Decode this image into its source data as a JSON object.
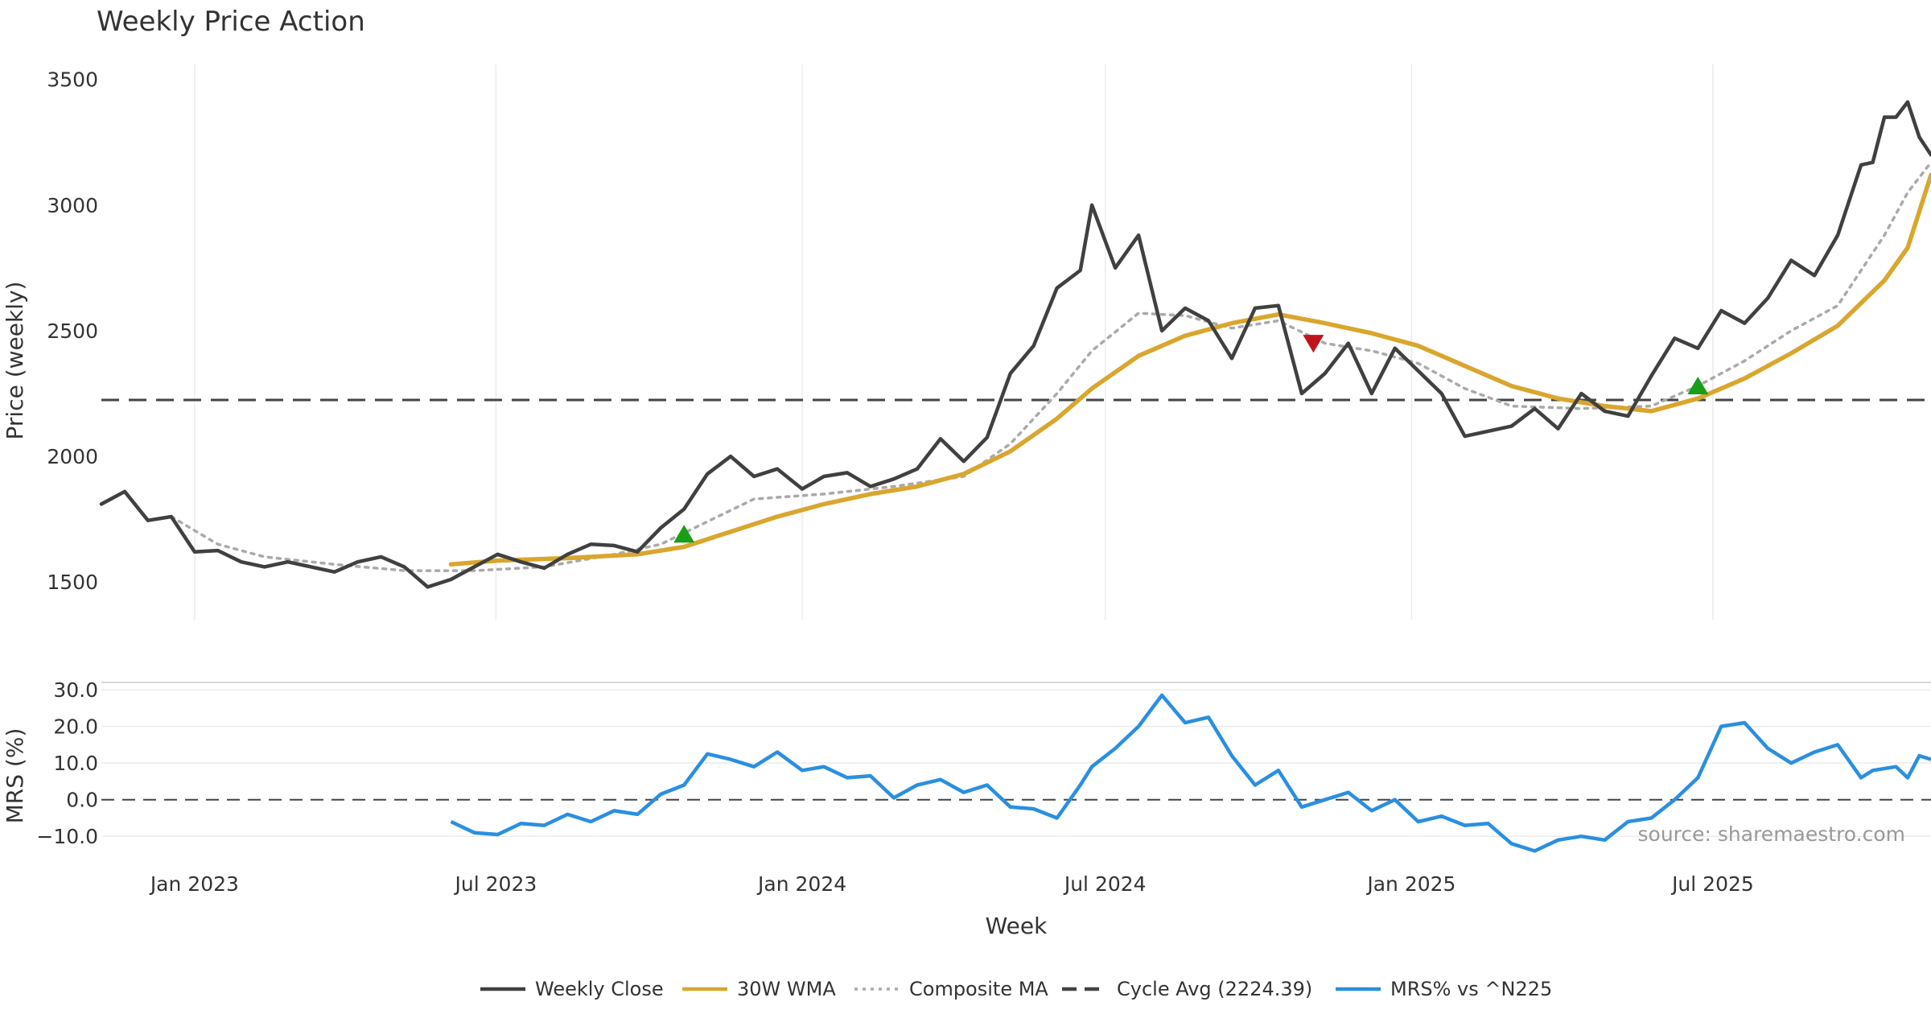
{
  "chart_data": {
    "type": "line",
    "title": "Weekly Price Action",
    "source": "source: sharemaestro.com",
    "xlabel": "Week",
    "x_ticks": [
      "Jan 2023",
      "Jul 2023",
      "Jan 2024",
      "Jul 2024",
      "Jan 2025",
      "Jul 2025"
    ],
    "x_tick_dates": [
      "2023-01-01",
      "2023-07-01",
      "2024-01-01",
      "2024-07-01",
      "2025-01-01",
      "2025-07-01"
    ],
    "x_range": [
      "2022-11-06",
      "2025-11-09"
    ],
    "grid": true,
    "legend_position": "bottom-center",
    "price_panel": {
      "ylabel": "Price (weekly)",
      "ylim": [
        1350,
        3560
      ],
      "y_ticks": [
        "1500",
        "2000",
        "2500",
        "3000",
        "3500"
      ],
      "y_tick_values": [
        1500,
        2000,
        2500,
        3000,
        3500
      ],
      "series": [
        {
          "name": "Weekly Close",
          "color": "#404040",
          "style": "solid",
          "points": [
            [
              "2022-11-06",
              1810
            ],
            [
              "2022-11-20",
              1860
            ],
            [
              "2022-12-04",
              1745
            ],
            [
              "2022-12-18",
              1760
            ],
            [
              "2023-01-01",
              1620
            ],
            [
              "2023-01-15",
              1625
            ],
            [
              "2023-01-29",
              1580
            ],
            [
              "2023-02-12",
              1560
            ],
            [
              "2023-02-26",
              1580
            ],
            [
              "2023-03-12",
              1560
            ],
            [
              "2023-03-26",
              1540
            ],
            [
              "2023-04-09",
              1580
            ],
            [
              "2023-04-23",
              1600
            ],
            [
              "2023-05-07",
              1560
            ],
            [
              "2023-05-21",
              1480
            ],
            [
              "2023-06-04",
              1510
            ],
            [
              "2023-06-18",
              1560
            ],
            [
              "2023-07-02",
              1610
            ],
            [
              "2023-07-16",
              1580
            ],
            [
              "2023-07-30",
              1555
            ],
            [
              "2023-08-13",
              1610
            ],
            [
              "2023-08-27",
              1650
            ],
            [
              "2023-09-10",
              1645
            ],
            [
              "2023-09-24",
              1620
            ],
            [
              "2023-10-08",
              1715
            ],
            [
              "2023-10-22",
              1790
            ],
            [
              "2023-11-05",
              1930
            ],
            [
              "2023-11-19",
              2000
            ],
            [
              "2023-12-03",
              1920
            ],
            [
              "2023-12-17",
              1950
            ],
            [
              "2024-01-01",
              1870
            ],
            [
              "2024-01-14",
              1920
            ],
            [
              "2024-01-28",
              1935
            ],
            [
              "2024-02-11",
              1880
            ],
            [
              "2024-02-25",
              1910
            ],
            [
              "2024-03-10",
              1950
            ],
            [
              "2024-03-24",
              2070
            ],
            [
              "2024-04-07",
              1980
            ],
            [
              "2024-04-21",
              2075
            ],
            [
              "2024-05-05",
              2330
            ],
            [
              "2024-05-19",
              2440
            ],
            [
              "2024-06-02",
              2670
            ],
            [
              "2024-06-16",
              2740
            ],
            [
              "2024-06-23",
              3000
            ],
            [
              "2024-07-07",
              2750
            ],
            [
              "2024-07-21",
              2880
            ],
            [
              "2024-08-04",
              2500
            ],
            [
              "2024-08-18",
              2590
            ],
            [
              "2024-09-01",
              2540
            ],
            [
              "2024-09-15",
              2390
            ],
            [
              "2024-09-29",
              2590
            ],
            [
              "2024-10-13",
              2600
            ],
            [
              "2024-10-27",
              2250
            ],
            [
              "2024-11-10",
              2330
            ],
            [
              "2024-11-24",
              2450
            ],
            [
              "2024-12-08",
              2250
            ],
            [
              "2024-12-22",
              2430
            ],
            [
              "2025-01-05",
              2340
            ],
            [
              "2025-01-19",
              2250
            ],
            [
              "2025-02-02",
              2080
            ],
            [
              "2025-02-16",
              2100
            ],
            [
              "2025-03-02",
              2120
            ],
            [
              "2025-03-16",
              2190
            ],
            [
              "2025-03-30",
              2110
            ],
            [
              "2025-04-13",
              2250
            ],
            [
              "2025-04-27",
              2180
            ],
            [
              "2025-05-11",
              2160
            ],
            [
              "2025-05-25",
              2320
            ],
            [
              "2025-06-08",
              2470
            ],
            [
              "2025-06-22",
              2430
            ],
            [
              "2025-07-06",
              2580
            ],
            [
              "2025-07-20",
              2530
            ],
            [
              "2025-08-03",
              2630
            ],
            [
              "2025-08-17",
              2780
            ],
            [
              "2025-08-31",
              2720
            ],
            [
              "2025-09-14",
              2880
            ],
            [
              "2025-09-28",
              3160
            ],
            [
              "2025-10-05",
              3170
            ],
            [
              "2025-10-12",
              3350
            ],
            [
              "2025-10-19",
              3350
            ],
            [
              "2025-10-26",
              3410
            ],
            [
              "2025-11-02",
              3270
            ],
            [
              "2025-11-09",
              3200
            ]
          ]
        },
        {
          "name": "30W WMA",
          "color": "#D9A62E",
          "style": "solid",
          "points": [
            [
              "2023-06-04",
              1570
            ],
            [
              "2023-07-02",
              1585
            ],
            [
              "2023-08-13",
              1595
            ],
            [
              "2023-09-24",
              1610
            ],
            [
              "2023-10-22",
              1640
            ],
            [
              "2023-11-19",
              1700
            ],
            [
              "2023-12-17",
              1760
            ],
            [
              "2024-01-14",
              1810
            ],
            [
              "2024-02-11",
              1850
            ],
            [
              "2024-03-10",
              1880
            ],
            [
              "2024-04-07",
              1930
            ],
            [
              "2024-05-05",
              2020
            ],
            [
              "2024-06-02",
              2150
            ],
            [
              "2024-06-23",
              2270
            ],
            [
              "2024-07-21",
              2400
            ],
            [
              "2024-08-18",
              2480
            ],
            [
              "2024-09-15",
              2530
            ],
            [
              "2024-10-13",
              2565
            ],
            [
              "2024-11-10",
              2530
            ],
            [
              "2024-12-08",
              2490
            ],
            [
              "2025-01-05",
              2440
            ],
            [
              "2025-02-02",
              2360
            ],
            [
              "2025-03-02",
              2280
            ],
            [
              "2025-03-30",
              2230
            ],
            [
              "2025-04-27",
              2200
            ],
            [
              "2025-05-25",
              2180
            ],
            [
              "2025-06-22",
              2230
            ],
            [
              "2025-07-20",
              2310
            ],
            [
              "2025-08-17",
              2410
            ],
            [
              "2025-09-14",
              2520
            ],
            [
              "2025-10-12",
              2700
            ],
            [
              "2025-10-26",
              2830
            ],
            [
              "2025-11-09",
              3120
            ]
          ]
        },
        {
          "name": "Composite MA",
          "color": "#AAAAAA",
          "style": "dotted",
          "points": [
            [
              "2022-12-18",
              1760
            ],
            [
              "2023-01-15",
              1650
            ],
            [
              "2023-02-12",
              1600
            ],
            [
              "2023-03-26",
              1570
            ],
            [
              "2023-05-07",
              1545
            ],
            [
              "2023-06-18",
              1545
            ],
            [
              "2023-07-30",
              1560
            ],
            [
              "2023-09-10",
              1610
            ],
            [
              "2023-10-08",
              1650
            ],
            [
              "2023-11-05",
              1740
            ],
            [
              "2023-12-03",
              1830
            ],
            [
              "2024-01-14",
              1850
            ],
            [
              "2024-02-25",
              1880
            ],
            [
              "2024-04-07",
              1920
            ],
            [
              "2024-05-05",
              2050
            ],
            [
              "2024-06-02",
              2250
            ],
            [
              "2024-06-23",
              2420
            ],
            [
              "2024-07-21",
              2570
            ],
            [
              "2024-08-18",
              2560
            ],
            [
              "2024-09-15",
              2510
            ],
            [
              "2024-10-13",
              2540
            ],
            [
              "2024-11-10",
              2450
            ],
            [
              "2024-12-08",
              2420
            ],
            [
              "2025-01-05",
              2370
            ],
            [
              "2025-02-02",
              2270
            ],
            [
              "2025-03-02",
              2200
            ],
            [
              "2025-04-13",
              2190
            ],
            [
              "2025-05-25",
              2200
            ],
            [
              "2025-06-22",
              2280
            ],
            [
              "2025-07-20",
              2380
            ],
            [
              "2025-08-17",
              2500
            ],
            [
              "2025-09-14",
              2600
            ],
            [
              "2025-10-12",
              2880
            ],
            [
              "2025-10-26",
              3050
            ],
            [
              "2025-11-09",
              3170
            ]
          ]
        },
        {
          "name": "Cycle Avg (2224.39)",
          "color": "#444444",
          "style": "dashed",
          "value": 2224.39
        }
      ],
      "markers": [
        {
          "type": "buy",
          "date": "2023-10-22",
          "value": 1690,
          "color": "#1A9E1A"
        },
        {
          "type": "sell",
          "date": "2024-11-03",
          "value": 2450,
          "color": "#C0141B"
        },
        {
          "type": "buy",
          "date": "2025-06-22",
          "value": 2280,
          "color": "#1A9E1A"
        }
      ]
    },
    "mrs_panel": {
      "ylabel": "MRS (%)",
      "ylim": [
        -15,
        32
      ],
      "y_ticks": [
        "30.0",
        "20.0",
        "10.0",
        "0.0",
        "−10.0"
      ],
      "y_tick_values": [
        30,
        20,
        10,
        0,
        -10
      ],
      "series": [
        {
          "name": "MRS% vs ^N225",
          "color": "#2A8FE0",
          "style": "solid",
          "points": [
            [
              "2023-06-04",
              -6
            ],
            [
              "2023-06-18",
              -9
            ],
            [
              "2023-07-02",
              -9.5
            ],
            [
              "2023-07-16",
              -6.5
            ],
            [
              "2023-07-30",
              -7
            ],
            [
              "2023-08-13",
              -4
            ],
            [
              "2023-08-27",
              -6
            ],
            [
              "2023-09-10",
              -3
            ],
            [
              "2023-09-24",
              -4
            ],
            [
              "2023-10-08",
              1.5
            ],
            [
              "2023-10-22",
              4
            ],
            [
              "2023-11-05",
              12.5
            ],
            [
              "2023-11-19",
              11
            ],
            [
              "2023-12-03",
              9
            ],
            [
              "2023-12-17",
              13
            ],
            [
              "2024-01-01",
              8
            ],
            [
              "2024-01-14",
              9
            ],
            [
              "2024-01-28",
              6
            ],
            [
              "2024-02-11",
              6.5
            ],
            [
              "2024-02-25",
              0.5
            ],
            [
              "2024-03-10",
              4
            ],
            [
              "2024-03-24",
              5.5
            ],
            [
              "2024-04-07",
              2
            ],
            [
              "2024-04-21",
              4
            ],
            [
              "2024-05-05",
              -2
            ],
            [
              "2024-05-19",
              -2.5
            ],
            [
              "2024-06-02",
              -5
            ],
            [
              "2024-06-16",
              4
            ],
            [
              "2024-06-23",
              9
            ],
            [
              "2024-07-07",
              14
            ],
            [
              "2024-07-21",
              20
            ],
            [
              "2024-08-04",
              28.5
            ],
            [
              "2024-08-18",
              21
            ],
            [
              "2024-09-01",
              22.5
            ],
            [
              "2024-09-15",
              12
            ],
            [
              "2024-09-29",
              4
            ],
            [
              "2024-10-13",
              8
            ],
            [
              "2024-10-27",
              -2
            ],
            [
              "2024-11-10",
              0
            ],
            [
              "2024-11-24",
              2
            ],
            [
              "2024-12-08",
              -3
            ],
            [
              "2024-12-22",
              0
            ],
            [
              "2025-01-05",
              -6
            ],
            [
              "2025-01-19",
              -4.5
            ],
            [
              "2025-02-02",
              -7
            ],
            [
              "2025-02-16",
              -6.5
            ],
            [
              "2025-03-02",
              -12
            ],
            [
              "2025-03-16",
              -14
            ],
            [
              "2025-03-30",
              -11
            ],
            [
              "2025-04-13",
              -10
            ],
            [
              "2025-04-27",
              -11
            ],
            [
              "2025-05-11",
              -6
            ],
            [
              "2025-05-25",
              -5
            ],
            [
              "2025-06-08",
              0
            ],
            [
              "2025-06-22",
              6
            ],
            [
              "2025-07-06",
              20
            ],
            [
              "2025-07-20",
              21
            ],
            [
              "2025-08-03",
              14
            ],
            [
              "2025-08-17",
              10
            ],
            [
              "2025-08-31",
              13
            ],
            [
              "2025-09-14",
              15
            ],
            [
              "2025-09-28",
              6
            ],
            [
              "2025-10-05",
              8
            ],
            [
              "2025-10-19",
              9
            ],
            [
              "2025-10-26",
              6
            ],
            [
              "2025-11-02",
              12
            ],
            [
              "2025-11-09",
              11
            ]
          ]
        }
      ]
    },
    "legend": [
      {
        "label": "Weekly Close",
        "color": "#404040",
        "style": "solid"
      },
      {
        "label": "30W WMA",
        "color": "#D9A62E",
        "style": "solid"
      },
      {
        "label": "Composite MA",
        "color": "#AAAAAA",
        "style": "dotted"
      },
      {
        "label": "Cycle Avg (2224.39)",
        "color": "#444444",
        "style": "dashed"
      },
      {
        "label": "MRS% vs ^N225",
        "color": "#2A8FE0",
        "style": "solid"
      }
    ]
  }
}
